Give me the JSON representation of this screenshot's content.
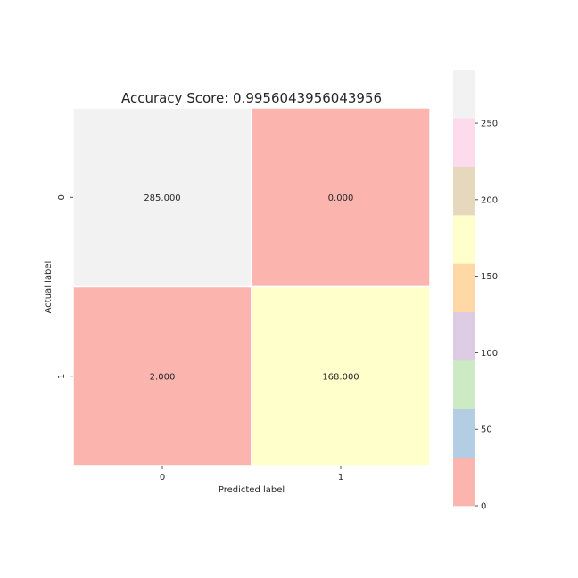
{
  "chart_data": {
    "type": "heatmap",
    "title": "Accuracy Score: 0.9956043956043956",
    "xlabel": "Predicted label",
    "ylabel": "Actual label",
    "x_categories": [
      "0",
      "1"
    ],
    "y_categories": [
      "0",
      "1"
    ],
    "values": [
      [
        285,
        0
      ],
      [
        2,
        168
      ]
    ],
    "cell_labels": [
      [
        "285.000",
        "0.000"
      ],
      [
        "2.000",
        "168.000"
      ]
    ],
    "colormap": "Pastel1",
    "colorbar": {
      "range": [
        0,
        285
      ],
      "ticks": [
        0,
        50,
        100,
        150,
        200,
        250
      ],
      "tick_labels": [
        "0",
        "50",
        "100",
        "150",
        "200",
        "250"
      ],
      "colors": [
        "#fbb4ae",
        "#b3cde3",
        "#ccebc5",
        "#decbe4",
        "#fed9a6",
        "#ffffcc",
        "#e5d8bd",
        "#fddaec",
        "#f2f2f2"
      ]
    }
  }
}
